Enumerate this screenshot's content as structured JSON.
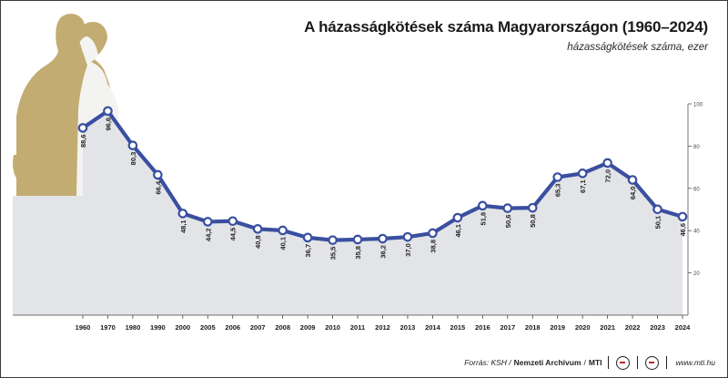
{
  "title": "A házasságkötések száma Magyarországon (1960–2024)",
  "subtitle": "házasságkötések száma, ezer",
  "footer": {
    "source": "Forrás: KSH /",
    "org1": "Nemzeti Archívum",
    "org2": "MTI",
    "url": "www.mti.hu"
  },
  "colors": {
    "line": "#3a4fa0",
    "area": "#e3e4e8",
    "marker_fill": "#ffffff",
    "illustration": "#c2ac72"
  },
  "chart_data": {
    "type": "line",
    "title": "A házasságkötések száma Magyarországon (1960–2024)",
    "ylabel": "házasságkötések száma, ezer",
    "categories": [
      "1960",
      "1970",
      "1980",
      "1990",
      "2000",
      "2005",
      "2006",
      "2007",
      "2008",
      "2009",
      "2010",
      "2011",
      "2012",
      "2013",
      "2014",
      "2015",
      "2016",
      "2017",
      "2018",
      "2019",
      "2020",
      "2021",
      "2022",
      "2023",
      "2024"
    ],
    "values": [
      88.6,
      96.6,
      80.3,
      66.4,
      48.1,
      44.2,
      44.5,
      40.8,
      40.1,
      36.7,
      35.5,
      35.8,
      36.2,
      37.0,
      38.8,
      46.1,
      51.8,
      50.6,
      50.8,
      65.3,
      67.1,
      72.0,
      64.0,
      50.1,
      46.6
    ],
    "data_labels": [
      "88,6",
      "96,6",
      "80,3",
      "66,4",
      "48,1",
      "44,2",
      "44,5",
      "40,8",
      "40,1",
      "36,7",
      "35,5",
      "35,8",
      "36,2",
      "37,0",
      "38,8",
      "46,1",
      "51,8",
      "50,6",
      "50,8",
      "65,3",
      "67,1",
      "72,0",
      "64,0",
      "50,1",
      "46,6"
    ],
    "yticks": [
      20,
      40,
      60,
      80,
      100
    ],
    "ylim": [
      0,
      100
    ],
    "grid": false,
    "area_fill": true,
    "y_axis_side": "right"
  }
}
